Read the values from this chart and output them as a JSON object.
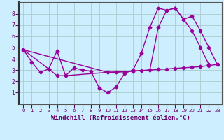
{
  "xlabel": "Windchill (Refroidissement éolien,°C)",
  "xlim": [
    -0.5,
    23.5
  ],
  "ylim": [
    0,
    9
  ],
  "xticks": [
    0,
    1,
    2,
    3,
    4,
    5,
    6,
    7,
    8,
    9,
    10,
    11,
    12,
    13,
    14,
    15,
    16,
    17,
    18,
    19,
    20,
    21,
    22,
    23
  ],
  "yticks": [
    1,
    2,
    3,
    4,
    5,
    6,
    7,
    8
  ],
  "bg_color": "#cceeff",
  "grid_color": "#aacccc",
  "line_color": "#990099",
  "line1_x": [
    0,
    1,
    2,
    3,
    4,
    5,
    6,
    7,
    8,
    9,
    10,
    11,
    12,
    13,
    14,
    15,
    16,
    17,
    18,
    19,
    20,
    21,
    22
  ],
  "line1_y": [
    4.8,
    3.7,
    2.8,
    3.1,
    4.7,
    2.5,
    3.2,
    3.0,
    2.9,
    1.4,
    1.0,
    1.5,
    2.7,
    3.0,
    4.5,
    6.8,
    8.5,
    8.3,
    8.5,
    7.5,
    6.5,
    5.0,
    3.5
  ],
  "line2_x": [
    0,
    3,
    4,
    5,
    10,
    11,
    12,
    13,
    14,
    15,
    16,
    17,
    18,
    19,
    20,
    21,
    22,
    23
  ],
  "line2_y": [
    4.8,
    3.1,
    2.5,
    2.5,
    2.8,
    2.8,
    2.85,
    2.9,
    2.95,
    3.0,
    3.05,
    3.1,
    3.15,
    3.2,
    3.25,
    3.3,
    3.4,
    3.5
  ],
  "line3_x": [
    0,
    10,
    15,
    16,
    17,
    18,
    19,
    20,
    21,
    22,
    23
  ],
  "line3_y": [
    4.8,
    2.8,
    3.0,
    6.8,
    8.3,
    8.5,
    7.5,
    7.8,
    6.5,
    5.0,
    3.5
  ],
  "marker": "D",
  "marker_size": 2.5,
  "linewidth": 1.0,
  "tick_fontsize": 5,
  "xlabel_fontsize": 6.5,
  "spine_color": "#555555"
}
